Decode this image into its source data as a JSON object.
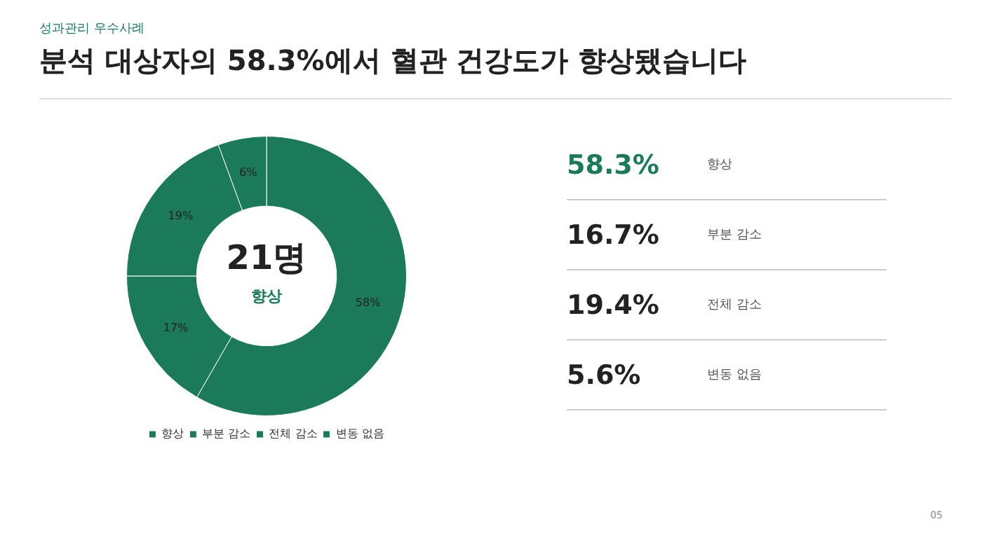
{
  "chart_data": [
    {
      "type": "donut",
      "title": "분석 대상자의 58.3%에서 혈관 건강도가 향상됐습니다",
      "subtitle": "성과관리 우수사례",
      "categories": [
        "향상",
        "부분 감소",
        "전체 감소",
        "변동 없음"
      ],
      "values": [
        58.3,
        16.7,
        19.4,
        5.6
      ],
      "value_labels": [
        "58%",
        "17%",
        "19%",
        "6%"
      ],
      "colors": [
        "#1b7a5a",
        "#1b7a5a",
        "#1b7a5a",
        "#1b7a5a"
      ],
      "legend": "bottom",
      "annotations": [
        "21명",
        "향상",
        "05"
      ]
    },
    {
      "type": "other",
      "annotations": [
        "58.3%",
        "향상",
        "16.7%",
        "부분 감소",
        "19.4%",
        "전체 감소",
        "5.6%",
        "변동 없음"
      ]
    }
  ]
}
